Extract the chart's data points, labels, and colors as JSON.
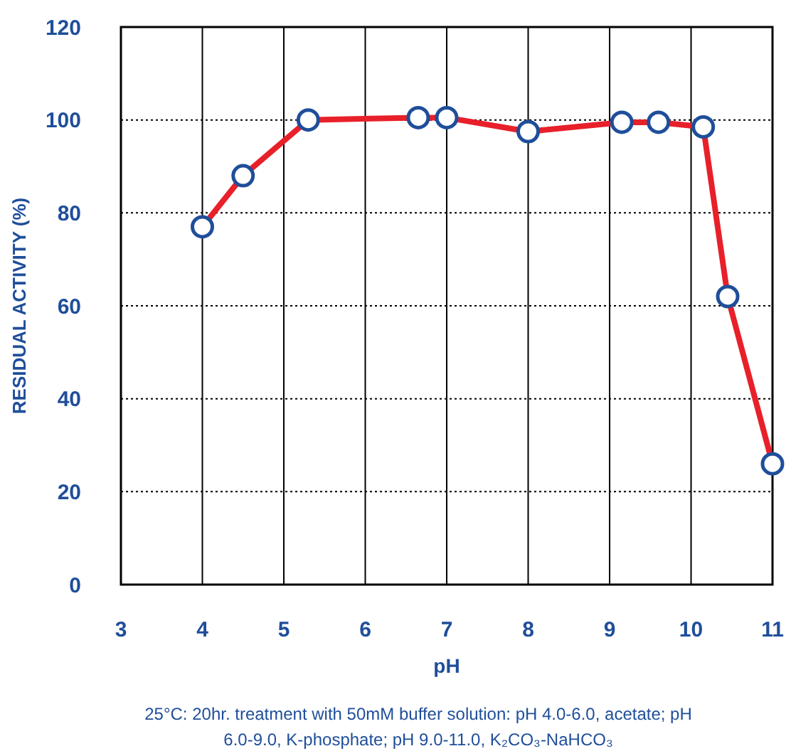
{
  "chart_data": {
    "type": "line",
    "xlabel": "pH",
    "ylabel": "RESIDUAL ACTIVITY (%)",
    "xlim": [
      3,
      11
    ],
    "xticks": [
      3,
      4,
      5,
      6,
      7,
      8,
      9,
      10,
      11
    ],
    "ylim": [
      0,
      120
    ],
    "yticks": [
      0,
      20,
      40,
      60,
      80,
      100,
      120
    ],
    "grid": true,
    "marker": "circle",
    "line_style": "solid",
    "series": [
      {
        "color": "#e8202a",
        "x": [
          4,
          4.5,
          5.3,
          6.65,
          7,
          8,
          9.15,
          9.6,
          10.15,
          10.45,
          11
        ],
        "values": [
          77,
          88,
          100,
          100.5,
          100.5,
          97.5,
          99.5,
          99.5,
          98.5,
          62,
          26
        ]
      }
    ],
    "annotations": [
      "25°C: 20hr. treatment with 50mM buffer solution: pH 4.0-6.0, acetate; pH 6.0-9.0, K-phosphate; pH 9.0-11.0, K₂CO₃-NaHCO₃"
    ]
  }
}
